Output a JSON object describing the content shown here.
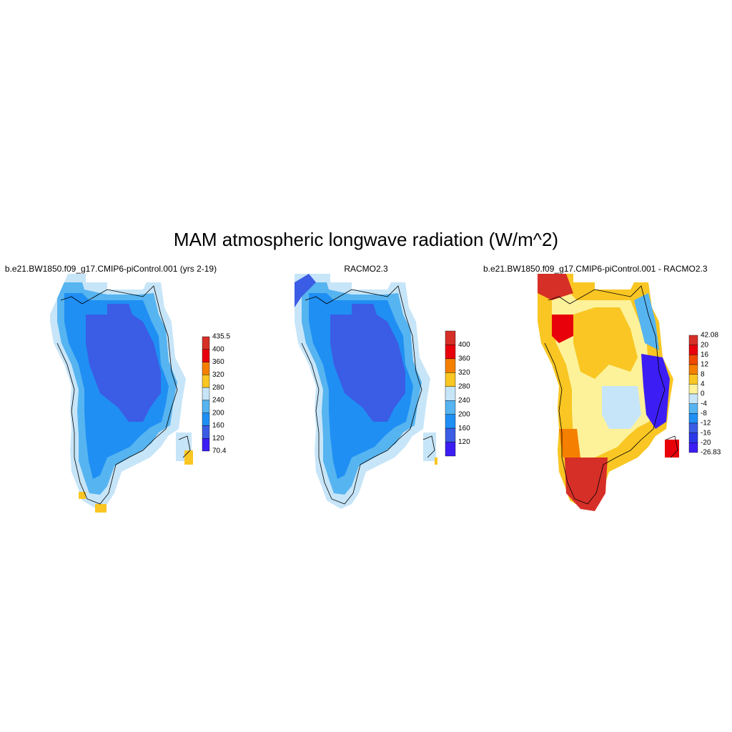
{
  "title": "MAM atmospheric longwave radiation (W/m^2)",
  "panels": [
    {
      "title": "b.e21.BW1850.f09_g17.CMIP6-piControl.001 (yrs 2-19)",
      "colorbar": {
        "labels": [
          "435.5",
          "400",
          "360",
          "320",
          "280",
          "240",
          "200",
          "160",
          "120",
          "70.4"
        ],
        "colors": [
          "#d62f27",
          "#e8000b",
          "#f57f00",
          "#f9c623",
          "#c7e5f8",
          "#56b4f0",
          "#1f8ff4",
          "#3b5ce4",
          "#3c1ef4"
        ]
      }
    },
    {
      "title": "RACMO2.3",
      "colorbar": {
        "labels": [
          "400",
          "360",
          "320",
          "280",
          "240",
          "200",
          "160",
          "120"
        ],
        "colors": [
          "#d62f27",
          "#e8000b",
          "#f57f00",
          "#f9c623",
          "#c7e5f8",
          "#56b4f0",
          "#1f8ff4",
          "#3b5ce4",
          "#3c1ef4"
        ]
      }
    },
    {
      "title": "b.e21.BW1850.f09_g17.CMIP6-piControl.001 - RACMO2.3",
      "colorbar": {
        "labels": [
          "42.08",
          "20",
          "16",
          "12",
          "8",
          "4",
          "0",
          "-4",
          "-8",
          "-12",
          "-16",
          "-20",
          "-26.83"
        ],
        "colors": [
          "#d62f27",
          "#e8000b",
          "#f04a00",
          "#f57f00",
          "#f9c623",
          "#fdf29a",
          "#c7e5f8",
          "#56b4f0",
          "#1f8ff4",
          "#3b5ce4",
          "#2a38e8",
          "#3c1ef4"
        ]
      }
    }
  ]
}
